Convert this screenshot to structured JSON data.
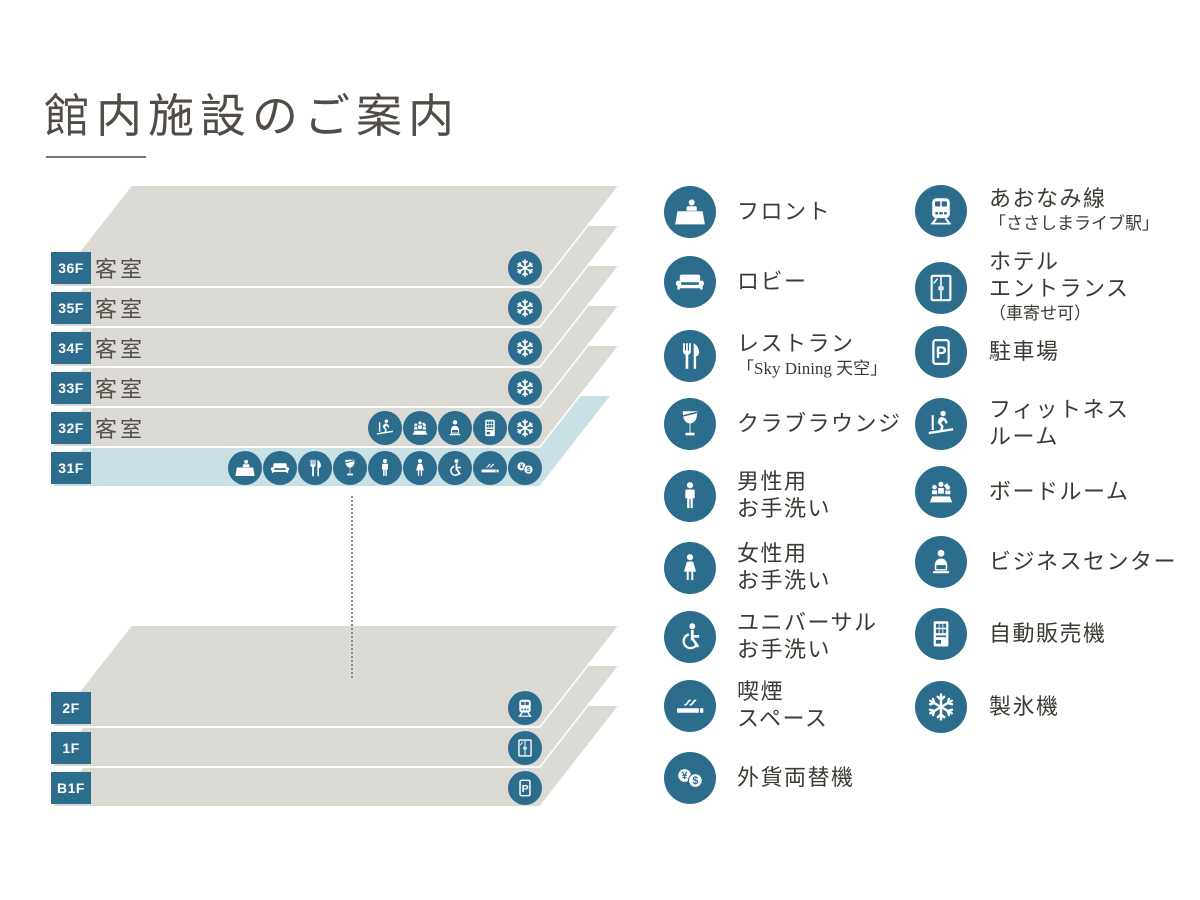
{
  "page": {
    "title": "館内施設のご案内"
  },
  "colors": {
    "accent": "#2c6c8d",
    "sheet_gray": "#dbdad5",
    "sheet_blue": "#c9e0e4",
    "label_text": "#ffffff",
    "room_text": "#55514a",
    "legend_text": "#3d3a34",
    "title_text": "#514d46"
  },
  "diagram": {
    "upper_floors": [
      {
        "label": "36F",
        "room": "客室",
        "icons": [
          "ice"
        ],
        "highlight": false
      },
      {
        "label": "35F",
        "room": "客室",
        "icons": [
          "ice"
        ],
        "highlight": false
      },
      {
        "label": "34F",
        "room": "客室",
        "icons": [
          "ice"
        ],
        "highlight": false
      },
      {
        "label": "33F",
        "room": "客室",
        "icons": [
          "ice"
        ],
        "highlight": false
      },
      {
        "label": "32F",
        "room": "客室",
        "icons": [
          "fitness",
          "boardroom",
          "business",
          "vending",
          "ice"
        ],
        "highlight": false
      },
      {
        "label": "31F",
        "room": "",
        "icons": [
          "front-desk",
          "sofa",
          "restaurant",
          "lounge",
          "male",
          "female",
          "universal",
          "smoking",
          "exchange"
        ],
        "highlight": true
      }
    ],
    "lower_floors": [
      {
        "label": "2F",
        "icons": [
          "train"
        ]
      },
      {
        "label": "1F",
        "icons": [
          "entrance"
        ]
      },
      {
        "label": "B1F",
        "icons": [
          "parking"
        ]
      }
    ]
  },
  "legend": {
    "col1": [
      {
        "icon": "front-desk",
        "lines": [
          {
            "text": "フロント",
            "small": false
          }
        ]
      },
      {
        "icon": "sofa",
        "lines": [
          {
            "text": "ロビー",
            "small": false
          }
        ]
      },
      {
        "icon": "restaurant",
        "lines": [
          {
            "text": "レストラン",
            "small": false
          },
          {
            "text": "「Sky Dining 天空」",
            "small": true
          }
        ]
      },
      {
        "icon": "lounge",
        "lines": [
          {
            "text": "クラブラウンジ",
            "small": false
          }
        ]
      },
      {
        "icon": "male",
        "lines": [
          {
            "text": "男性用",
            "small": false
          },
          {
            "text": "お手洗い",
            "small": false
          }
        ]
      },
      {
        "icon": "female",
        "lines": [
          {
            "text": "女性用",
            "small": false
          },
          {
            "text": "お手洗い",
            "small": false
          }
        ]
      },
      {
        "icon": "universal",
        "lines": [
          {
            "text": "ユニバーサル",
            "small": false
          },
          {
            "text": "お手洗い",
            "small": false
          }
        ]
      },
      {
        "icon": "smoking",
        "lines": [
          {
            "text": "喫煙",
            "small": false
          },
          {
            "text": "スペース",
            "small": false
          }
        ]
      },
      {
        "icon": "exchange",
        "lines": [
          {
            "text": "外貨両替機",
            "small": false
          }
        ]
      }
    ],
    "col2": [
      {
        "icon": "train",
        "lines": [
          {
            "text": "あおなみ線",
            "small": false
          },
          {
            "text": "「ささしまライブ駅」",
            "small": true
          }
        ]
      },
      {
        "icon": "entrance",
        "lines": [
          {
            "text": "ホテル",
            "small": false
          },
          {
            "text": "エントランス",
            "small": false
          },
          {
            "text": "（車寄せ可）",
            "small": true
          }
        ]
      },
      {
        "icon": "parking",
        "lines": [
          {
            "text": "駐車場",
            "small": false
          }
        ]
      },
      {
        "icon": "fitness",
        "lines": [
          {
            "text": "フィットネス",
            "small": false
          },
          {
            "text": "ルーム",
            "small": false
          }
        ]
      },
      {
        "icon": "boardroom",
        "lines": [
          {
            "text": "ボードルーム",
            "small": false
          }
        ]
      },
      {
        "icon": "business",
        "lines": [
          {
            "text": "ビジネスセンター",
            "small": false
          }
        ]
      },
      {
        "icon": "vending",
        "lines": [
          {
            "text": "自動販売機",
            "small": false
          }
        ]
      },
      {
        "icon": "ice",
        "lines": [
          {
            "text": "製氷機",
            "small": false
          }
        ]
      }
    ]
  }
}
